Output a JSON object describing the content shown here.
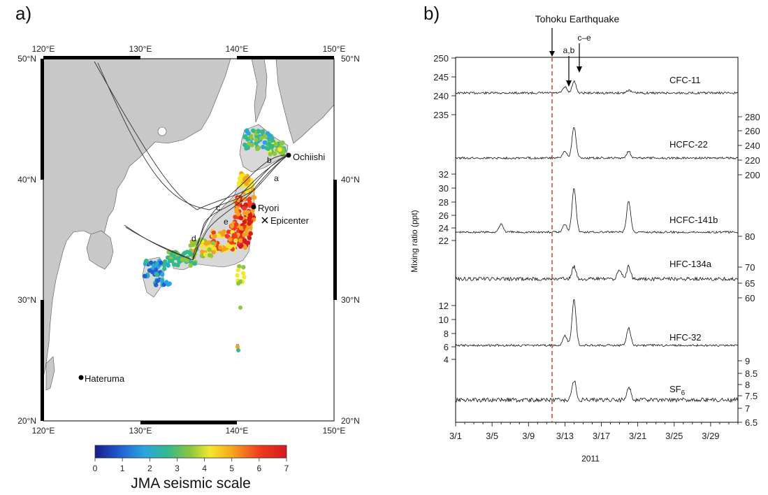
{
  "panel_a": {
    "label": "a)",
    "lon_ticks": [
      "120°E",
      "130°E",
      "140°E",
      "150°E"
    ],
    "lat_ticks": [
      "50°N",
      "40°N",
      "30°N",
      "20°N"
    ],
    "stations": {
      "ochiishi": "Ochiishi",
      "ryori": "Ryori",
      "hateruma": "Hateruma",
      "epicenter": "Epicenter"
    },
    "trajectory_labels": [
      "a",
      "b",
      "c",
      "d",
      "e"
    ],
    "colorbar": {
      "ticks": [
        "0",
        "1",
        "2",
        "3",
        "4",
        "5",
        "6",
        "7"
      ],
      "title": "JMA seismic scale",
      "colors": [
        "#1a1a8c",
        "#1f5fd0",
        "#29a6e0",
        "#34b98a",
        "#8dc63f",
        "#f3e82c",
        "#f7a21c",
        "#ee3b20",
        "#d7191c"
      ]
    },
    "colors": {
      "land": "#c8c8c8",
      "sea": "#ffffff",
      "track": "#333333"
    }
  },
  "panel_b": {
    "label": "b)",
    "event_label": "Tohoku Earthquake",
    "markers": [
      "a,b",
      "c–e"
    ],
    "ylabel": "Mixing ratio (ppt)",
    "xlabel": "2011",
    "x_ticks": [
      "3/1",
      "3/5",
      "3/9",
      "3/13",
      "3/17",
      "3/21",
      "3/25",
      "3/29"
    ],
    "left_ticks": [
      "250",
      "245",
      "240",
      "235",
      "32",
      "30",
      "28",
      "26",
      "24",
      "22",
      "12",
      "10",
      "8",
      "6",
      "4"
    ],
    "right_ticks": [
      "280",
      "260",
      "240",
      "220",
      "200",
      "80",
      "70",
      "65",
      "60",
      "9",
      "8.5",
      "8",
      "7.5",
      "7",
      "6.5"
    ],
    "series": [
      "CFC-11",
      "HCFC-22",
      "HCFC-141b",
      "HFC-134a",
      "HFC-32",
      "SF"
    ],
    "sf6_subscript": "6",
    "event_color": "#d94a3a"
  },
  "chart_data": {
    "type": "line",
    "xlabel": "2011",
    "ylabel": "Mixing ratio (ppt)",
    "x_range": [
      "3/1",
      "4/1"
    ],
    "event": {
      "name": "Tohoku Earthquake",
      "date": "3/11"
    },
    "series": [
      {
        "name": "CFC-11",
        "baseline": 241,
        "peaks": [
          {
            "date": "3/13",
            "value": 243
          },
          {
            "date": "3/14",
            "value": 245
          },
          {
            "date": "3/20",
            "value": 242
          }
        ]
      },
      {
        "name": "HCFC-22",
        "baseline": 225,
        "peaks": [
          {
            "date": "3/13",
            "value": 234
          },
          {
            "date": "3/14",
            "value": 266
          },
          {
            "date": "3/20",
            "value": 234
          }
        ]
      },
      {
        "name": "HCFC-141b",
        "baseline": 22.5,
        "peaks": [
          {
            "date": "3/6",
            "value": 24
          },
          {
            "date": "3/13",
            "value": 24
          },
          {
            "date": "3/14",
            "value": 30.5
          },
          {
            "date": "3/20",
            "value": 28
          }
        ]
      },
      {
        "name": "HFC-134a",
        "baseline": 65,
        "peaks": [
          {
            "date": "3/14",
            "value": 69
          },
          {
            "date": "3/19",
            "value": 68
          },
          {
            "date": "3/20",
            "value": 69
          }
        ]
      },
      {
        "name": "HFC-32",
        "baseline": 6,
        "peaks": [
          {
            "date": "3/13",
            "value": 7.5
          },
          {
            "date": "3/14",
            "value": 12.5
          },
          {
            "date": "3/20",
            "value": 8.5
          }
        ]
      },
      {
        "name": "SF6",
        "baseline": 7.3,
        "peaks": [
          {
            "date": "3/14",
            "value": 8.3
          },
          {
            "date": "3/20",
            "value": 8.0
          }
        ]
      }
    ]
  }
}
